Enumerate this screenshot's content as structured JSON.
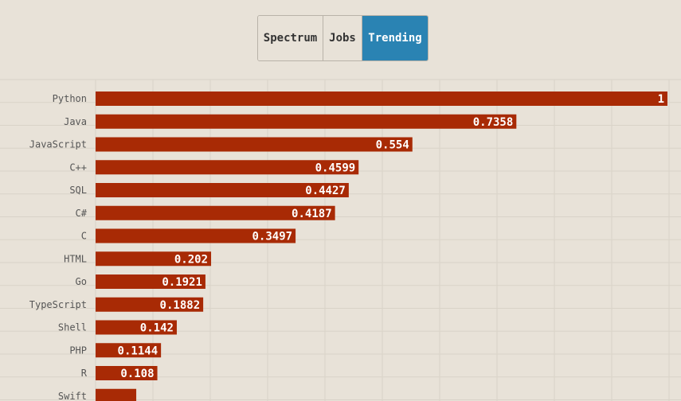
{
  "tabs": [
    {
      "label": "Spectrum",
      "active": false
    },
    {
      "label": "Jobs",
      "active": false
    },
    {
      "label": "Trending",
      "active": true
    }
  ],
  "colors": {
    "background": "#e8e2d8",
    "bar": "#a82a05",
    "tab_active": "#2a83b3",
    "grid": "#d9d3c8"
  },
  "chart_data": {
    "type": "bar",
    "orientation": "horizontal",
    "categories": [
      "Python",
      "Java",
      "JavaScript",
      "C++",
      "SQL",
      "C#",
      "C",
      "HTML",
      "Go",
      "TypeScript",
      "Shell",
      "PHP",
      "R",
      "Swift"
    ],
    "values": [
      1,
      0.7358,
      0.554,
      0.4599,
      0.4427,
      0.4187,
      0.3497,
      0.202,
      0.1921,
      0.1882,
      0.142,
      0.1144,
      0.108,
      0.0711
    ],
    "value_labels": [
      "1",
      "0.7358",
      "0.554",
      "0.4599",
      "0.4427",
      "0.4187",
      "0.3497",
      "0.202",
      "0.1921",
      "0.1882",
      "0.142",
      "0.1144",
      "0.108",
      ""
    ],
    "xlim": [
      0,
      1
    ],
    "grid": true
  }
}
